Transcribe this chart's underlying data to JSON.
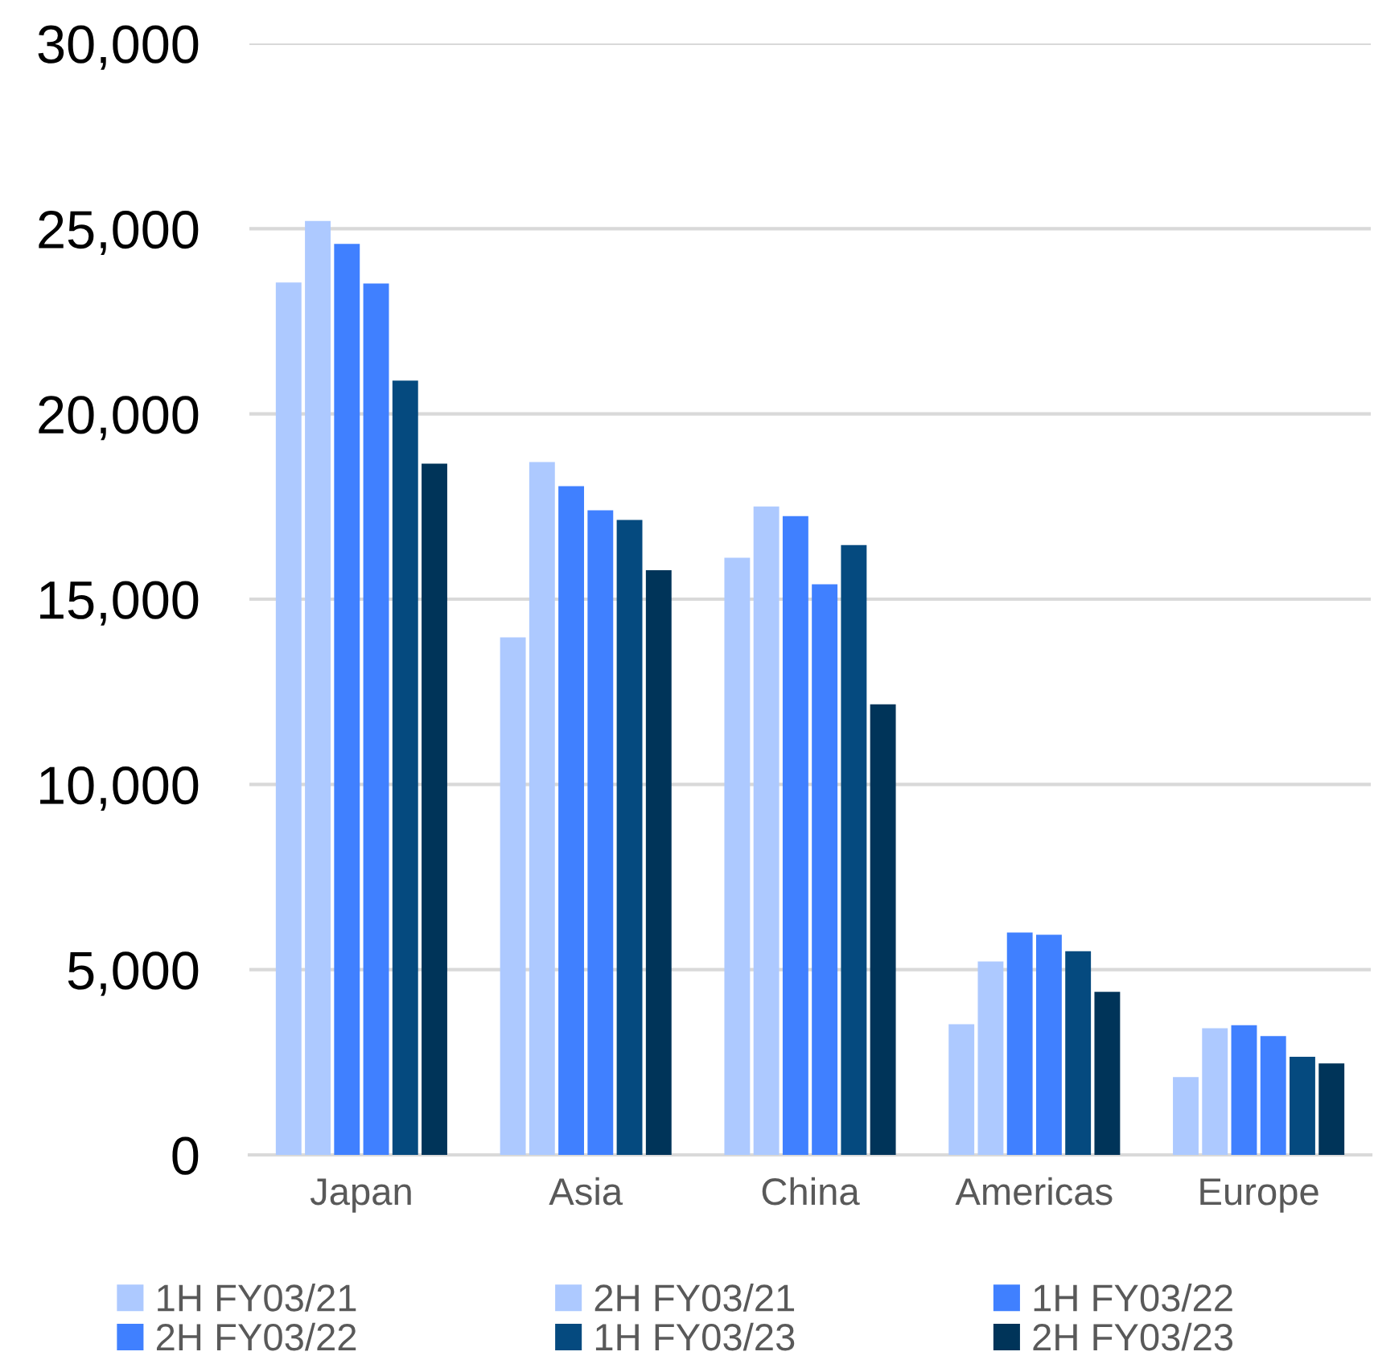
{
  "chart_data": {
    "type": "bar",
    "categories": [
      "Japan",
      "Asia",
      "China",
      "Americas",
      "Europe"
    ],
    "series": [
      {
        "name": "1H FY03/21",
        "color": "#adc9ff",
        "values": [
          23550,
          13970,
          16120,
          3530,
          2100
        ]
      },
      {
        "name": "2H FY03/21",
        "color": "#adc9ff",
        "values": [
          25210,
          18700,
          17500,
          5220,
          3420
        ]
      },
      {
        "name": "1H FY03/22",
        "color": "#4080ff",
        "values": [
          24590,
          18050,
          17240,
          6000,
          3500
        ]
      },
      {
        "name": "2H FY03/22",
        "color": "#4080ff",
        "values": [
          23520,
          17400,
          15400,
          5940,
          3210
        ]
      },
      {
        "name": "1H FY03/23",
        "color": "#054a7f",
        "values": [
          20900,
          17140,
          16460,
          5500,
          2650
        ]
      },
      {
        "name": "2H FY03/23",
        "color": "#003459",
        "values": [
          18660,
          15780,
          12160,
          4400,
          2470
        ]
      }
    ],
    "ylim": [
      0,
      30000
    ],
    "yticks": [
      {
        "value": 0,
        "label": "0"
      },
      {
        "value": 5000,
        "label": "5,000"
      },
      {
        "value": 10000,
        "label": "10,000"
      },
      {
        "value": 15000,
        "label": "15,000"
      },
      {
        "value": 20000,
        "label": "20,000"
      },
      {
        "value": 25000,
        "label": "25,000"
      },
      {
        "value": 30000,
        "label": "30,000"
      }
    ],
    "grid": "y",
    "legend": "bottom"
  }
}
